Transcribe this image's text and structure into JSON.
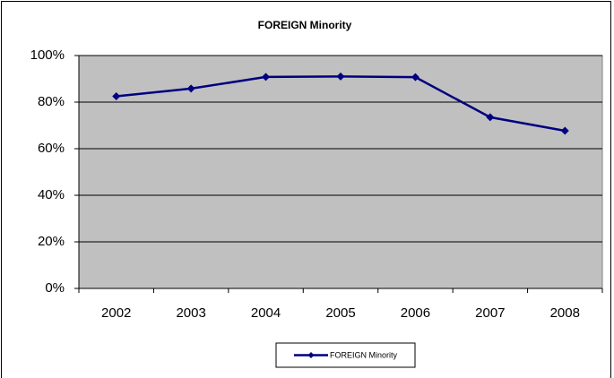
{
  "chart_data": {
    "type": "line",
    "title": "FOREIGN Minority",
    "categories": [
      "2002",
      "2003",
      "2004",
      "2005",
      "2006",
      "2007",
      "2008"
    ],
    "series": [
      {
        "name": "FOREIGN Minority",
        "color": "#000080",
        "values": [
          82.5,
          85.8,
          90.8,
          91,
          90.7,
          73.5,
          67.7
        ]
      }
    ],
    "ylim": [
      0,
      100
    ],
    "yticks": [
      {
        "value": 0,
        "label": "0%"
      },
      {
        "value": 20,
        "label": "20%"
      },
      {
        "value": 40,
        "label": "40%"
      },
      {
        "value": 60,
        "label": "60%"
      },
      {
        "value": 80,
        "label": "80%"
      },
      {
        "value": 100,
        "label": "100%"
      }
    ],
    "grid": true,
    "plot_background": "#c0c0c0",
    "legend": "bottom"
  }
}
